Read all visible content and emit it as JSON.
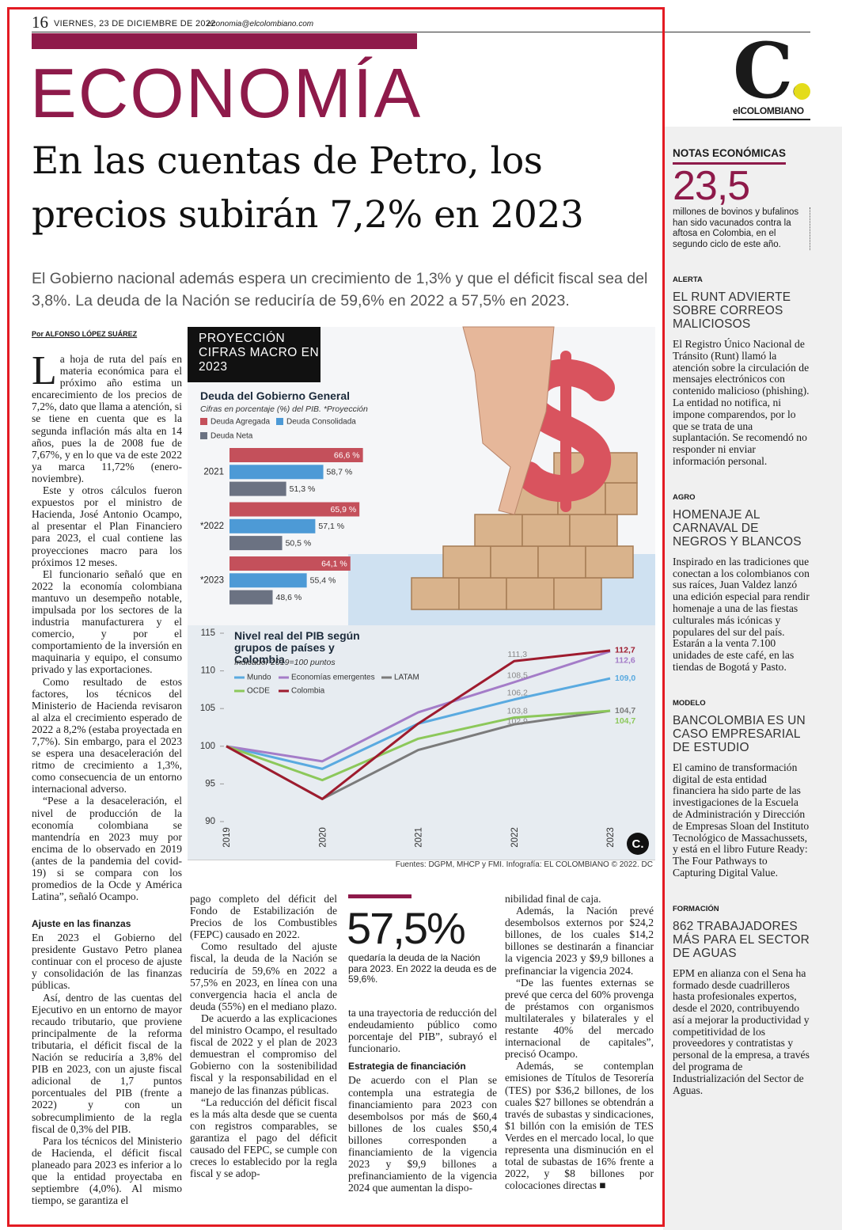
{
  "header": {
    "page": "16",
    "date": "VIERNES, 23 DE DICIEMBRE DE 2022",
    "email": "economia@elcolombiano.com"
  },
  "logo": {
    "mark": "C.",
    "name": "elCOLOMBIANO"
  },
  "section": "ECONOMÍA",
  "headline": "En las cuentas de Petro, los precios subirán 7,2% en 2023",
  "subtitle": "El Gobierno nacional además espera un crecimiento de 1,3% y que el déficit fiscal sea del 3,8%. La deuda de la Nación se reduciría de 59,6% en 2022 a 57,5% en 2023.",
  "byline": "Por ALFONSO LÓPEZ SUÁREZ",
  "infographic": {
    "title": "PROYECCIÓN CIFRAS MACRO EN 2023",
    "source": "Fuentes: DGPM, MHCP y FMI. Infografía: EL COLOMBIANO © 2022. DC"
  },
  "chart_data": [
    {
      "type": "bar",
      "orientation": "horizontal",
      "title": "Deuda del Gobierno General",
      "subtitle": "Cifras en porcentaje (%) del PIB. *Proyección",
      "categories": [
        "2021",
        "*2022",
        "*2023"
      ],
      "xlim": [
        40,
        68
      ],
      "series": [
        {
          "name": "Deuda Agregada",
          "color": "#c4505b",
          "values": [
            66.6,
            65.9,
            64.1
          ],
          "value_labels": [
            "66,6 %",
            "65,9 %",
            "64,1 %"
          ]
        },
        {
          "name": "Deuda Consolidada",
          "color": "#4d9ad6",
          "values": [
            58.7,
            57.1,
            55.4
          ],
          "value_labels": [
            "58,7 %",
            "57,1 %",
            "55,4 %"
          ]
        },
        {
          "name": "Deuda Neta",
          "color": "#6b7282",
          "values": [
            51.3,
            50.5,
            48.6
          ],
          "value_labels": [
            "51,3 %",
            "50,5 %",
            "48,6 %"
          ]
        }
      ]
    },
    {
      "type": "line",
      "title": "Nivel real del PIB según grupos de países y Colombia",
      "subtitle": "Indicador 2019=100 puntos",
      "categories": [
        "2019",
        "2020",
        "2021",
        "2022",
        "2023"
      ],
      "ylim": [
        90,
        115
      ],
      "yticks": [
        90,
        95,
        100,
        105,
        110,
        115
      ],
      "series": [
        {
          "name": "Mundo",
          "color": "#5aaae0",
          "values": [
            100,
            97,
            103,
            106.2,
            109.0
          ],
          "value_labels": [
            null,
            null,
            null,
            "106,2",
            "109,0"
          ]
        },
        {
          "name": "Economías emergentes",
          "color": "#a47cc8",
          "values": [
            100,
            98,
            104.5,
            108.5,
            112.6
          ],
          "value_labels": [
            null,
            null,
            null,
            "108,5",
            "112,6"
          ]
        },
        {
          "name": "LATAM",
          "color": "#7b7b7b",
          "values": [
            100,
            93,
            99.5,
            102.9,
            104.7
          ],
          "value_labels": [
            null,
            null,
            null,
            "102,9",
            "104,7"
          ]
        },
        {
          "name": "OCDE",
          "color": "#8cc85a",
          "values": [
            100,
            95.5,
            101,
            103.8,
            104.7
          ],
          "value_labels": [
            null,
            null,
            null,
            "103,8",
            "104,7"
          ]
        },
        {
          "name": "Colombia",
          "color": "#9e1b2e",
          "values": [
            100,
            93,
            103,
            111.3,
            112.7
          ],
          "value_labels": [
            null,
            null,
            null,
            "111,3",
            "112,7"
          ]
        }
      ]
    }
  ],
  "article": {
    "columns": [
      [
        {
          "text": "La hoja de ruta del país en materia económica para el próximo año estima un encarecimiento de los precios de 7,2%, dato que llama a atención, si se tiene en cuenta que es la segunda inflación más alta en 14 años, pues la de 2008 fue de 7,67%, y en lo que va de este 2022 ya marca 11,72% (enero-noviembre)."
        },
        {
          "text": "Este y otros cálculos fueron expuestos por el ministro de Hacienda, José Antonio Ocampo, al presentar el Plan Financiero para 2023, el cual contiene las proyecciones macro para los próximos 12 meses."
        },
        {
          "text": "El funcionario señaló que en 2022 la economía colombiana mantuvo un desempeño notable, impulsada por los sectores de la industria manufacturera y el comercio, y por el comportamiento de la inversión en maquinaria y equipo, el consumo privado y las exportaciones."
        },
        {
          "text": "Como resultado de estos factores, los técnicos del Ministerio de Hacienda revisaron al alza el crecimiento esperado de 2022 a 8,2% (estaba proyectada en 7,7%). Sin embargo, para el 2023 se espera una desaceleración del ritmo de crecimiento a 1,3%, como consecuencia de un entorno internacional adverso."
        },
        {
          "text": "“Pese a la desaceleración, el nivel de producción de la economía colombiana se mantendría en 2023 muy por encima de lo observado en 2019 (antes de la pandemia del covid-19) si se compara con los promedios de la Ocde y América Latina”, señaló Ocampo."
        }
      ],
      [
        {
          "subhead": "Ajuste en las finanzas"
        },
        {
          "text": "En 2023 el Gobierno del presidente Gustavo Petro planea continuar con el proceso de ajuste y consolidación de las finanzas públicas."
        },
        {
          "text": "Así, dentro de las cuentas del Ejecutivo en un entorno de mayor recaudo tributario, que proviene principalmente de la reforma tributaria, el déficit fiscal de la Nación se reduciría a 3,8% del PIB en 2023, con un ajuste fiscal adicional de 1,7 puntos porcentuales del PIB (frente a 2022) y con un sobrecumplimiento de la regla fiscal de 0,3% del PIB."
        },
        {
          "text": "Para los técnicos del Ministerio de Hacienda, el déficit fiscal planeado para 2023 es inferior a lo que la entidad proyectaba en septiembre (4,0%). Al mismo tiempo, se garantiza el"
        }
      ],
      [
        {
          "text": "pago completo del déficit del Fondo de Estabilización de Precios de los Combustibles (FEPC) causado en 2022."
        },
        {
          "text": "Como resultado del ajuste fiscal, la deuda de la Nación se reduciría de 59,6% en 2022 a 57,5% en 2023, en línea con una convergencia hacia el ancla de deuda (55%) en el mediano plazo."
        },
        {
          "text": "De acuerdo a las explicaciones del ministro Ocampo, el resultado fiscal de 2022 y el plan de 2023 demuestran el compromiso del Gobierno con la sostenibilidad fiscal y la responsabilidad en el manejo de las finanzas públicas."
        },
        {
          "text": "“La reducción del déficit fiscal es la más alta desde que se cuenta con registros comparables, se garantiza el pago del déficit causado del FEPC, se cumple con creces lo establecido por la regla fiscal y se adop-"
        }
      ],
      [
        {
          "text": "ta una trayectoria de reducción del endeudamiento público como porcentaje del PIB”, subrayó el funcionario."
        },
        {
          "subhead": "Estrategia de financiación"
        },
        {
          "text": "De acuerdo con el Plan se contempla una estrategia de financiamiento para 2023 con desembolsos por más de $60,4 billones de los cuales $50,4 billones corresponden a financiamiento de la vigencia 2023 y $9,9 billones a prefinanciamiento de la vigencia 2024 que aumentan la dispo-"
        }
      ],
      [
        {
          "text": "nibilidad final de caja."
        },
        {
          "text": "Además, la Nación prevé desembolsos externos por $24,2 billones, de los cuales $14,2 billones se destinarán a financiar la vigencia 2023 y $9,9 billones a prefinanciar la vigencia 2024."
        },
        {
          "text": "“De las fuentes externas se prevé que cerca del 60% provenga de préstamos con organismos multilaterales y bilaterales y el restante 40% del mercado internacional de capitales”, precisó Ocampo."
        },
        {
          "text": "Además, se contemplan emisiones de Títulos de Tesorería (TES) por $36,2 billones, de los cuales $27 billones se obtendrán a través de subastas y sindicaciones, $1 billón con la emisión de TES Verdes en el mercado local, lo que representa una disminución en el total de subastas de 16% frente a 2022, y $8 billones por colocaciones directas ■"
        }
      ]
    ],
    "pullquote": {
      "figure": "57,5%",
      "text": "quedaría la deuda de la Nación para 2023. En 2022 la deuda es de 59,6%."
    }
  },
  "sidebar": {
    "notes": {
      "label": "NOTAS ECONÓMICAS",
      "figure": "23,5",
      "text": "millones de bovinos y bufalinos han sido vacunados contra la aftosa en Colombia, en el segundo ciclo de este año."
    },
    "briefs": [
      {
        "tag": "ALERTA",
        "title": "EL RUNT ADVIERTE SOBRE CORREOS MALICIOSOS",
        "text": "El Registro Único Nacional de Tránsito (Runt) llamó la atención sobre la circulación de mensajes electrónicos con contenido malicioso (phishing). La entidad no notifica, ni impone comparendos, por lo que se trata de una suplantación. Se recomendó no responder ni enviar información personal."
      },
      {
        "tag": "AGRO",
        "title": "HOMENAJE AL CARNAVAL DE NEGROS Y BLANCOS",
        "text": "Inspirado en las tradiciones que conectan a los colombianos con sus raíces, Juan Valdez lanzó una edición especial para rendir homenaje a una de las fiestas culturales más icónicas y populares del sur del país. Estarán a la venta 7.100 unidades de este café, en las tiendas de Bogotá y Pasto."
      },
      {
        "tag": "MODELO",
        "title": "BANCOLOMBIA ES UN CASO EMPRESARIAL DE ESTUDIO",
        "text": "El camino de transformación digital de esta entidad financiera ha sido parte de las investigaciones de la Escuela de Administración y Dirección de Empresas Sloan del Instituto Tecnológico de Massachussets, y está en el libro Future Ready: The Four Pathways to Capturing Digital Value."
      },
      {
        "tag": "FORMACIÓN",
        "title": "862 TRABAJADORES MÁS PARA EL SECTOR DE AGUAS",
        "text": "EPM en alianza con el Sena ha formado desde cuadrilleros hasta profesionales expertos, desde el 2020, contribuyendo así a mejorar la productividad y competitividad de los proveedores y contratistas y personal de la empresa, a través del programa de Industrialización del Sector de Aguas."
      }
    ]
  }
}
